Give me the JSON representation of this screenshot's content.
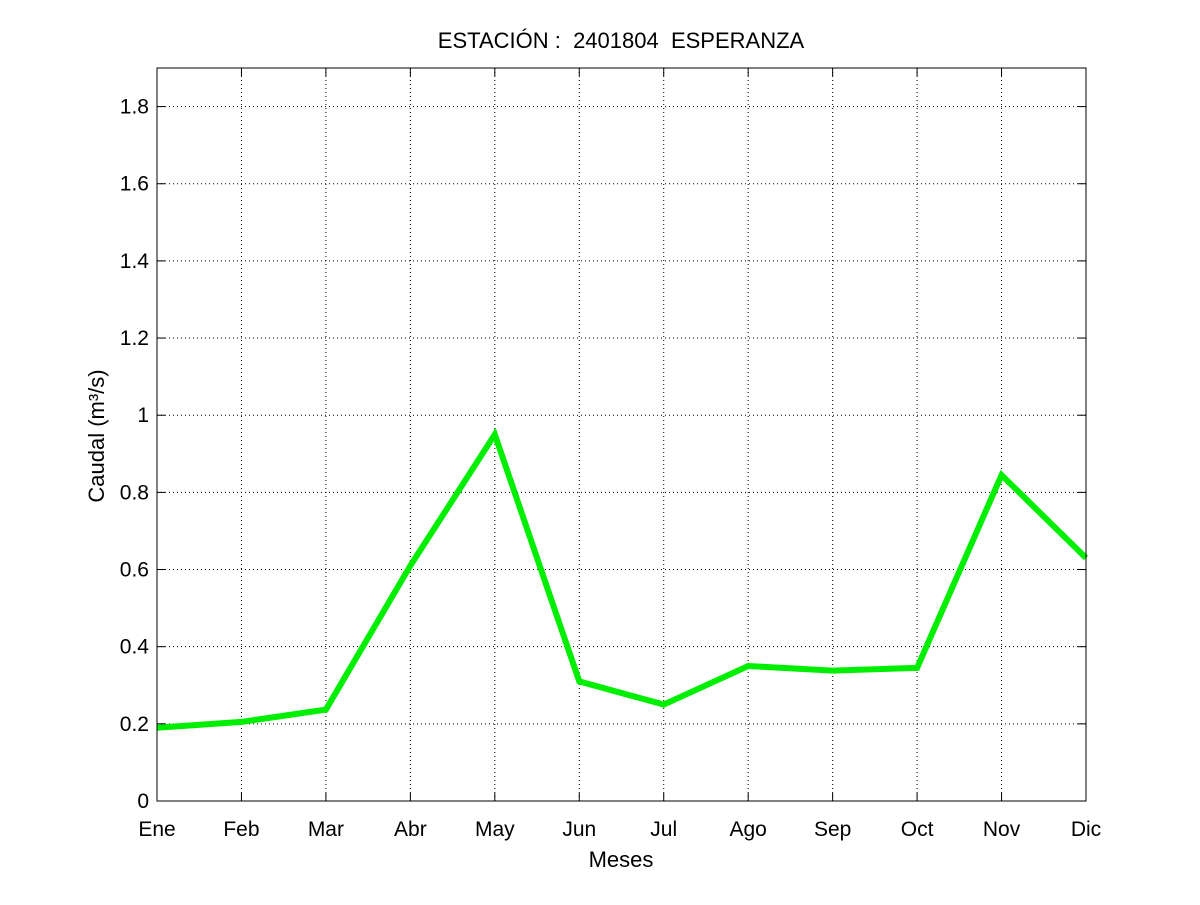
{
  "chart_data": {
    "type": "line",
    "title": "ESTACIÓN :  2401804  ESPERANZA",
    "xlabel": "Meses",
    "ylabel": "Caudal (m³/s)",
    "categories": [
      "Ene",
      "Feb",
      "Mar",
      "Abr",
      "May",
      "Jun",
      "Jul",
      "Ago",
      "Sep",
      "Oct",
      "Nov",
      "Dic"
    ],
    "y_ticks": [
      "0",
      "0.2",
      "0.4",
      "0.6",
      "0.8",
      "1",
      "1.2",
      "1.4",
      "1.6",
      "1.8"
    ],
    "ylim": [
      0,
      1.9
    ],
    "grid": true,
    "series": [
      {
        "values": [
          0.19,
          0.205,
          0.237,
          0.61,
          0.95,
          0.31,
          0.25,
          0.35,
          0.338,
          0.345,
          0.845,
          0.63
        ],
        "color": "#00ee00"
      }
    ]
  }
}
